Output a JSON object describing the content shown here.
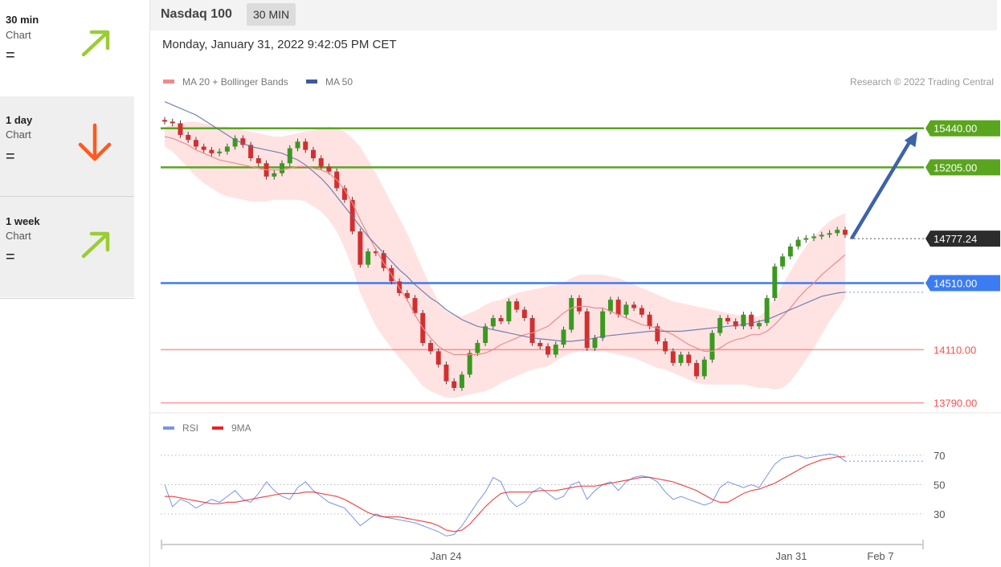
{
  "sidebar": {
    "items": [
      {
        "period": "30 min",
        "kind": "Chart",
        "signal": "=",
        "arrow": "up",
        "arrow_color": "#9acd32"
      },
      {
        "period": "1 day",
        "kind": "Chart",
        "signal": "=",
        "arrow": "down",
        "arrow_color": "#ff5a1f"
      },
      {
        "period": "1 week",
        "kind": "Chart",
        "signal": "=",
        "arrow": "up",
        "arrow_color": "#9acd32"
      }
    ]
  },
  "header": {
    "title": "Nasdaq 100",
    "timeframe": "30 MIN",
    "datetime": "Monday, January 31, 2022 9:42:05 PM CET"
  },
  "chart_data": {
    "type": "line",
    "legend": [
      "MA 20 + Bollinger Bands",
      "MA 50"
    ],
    "legend_colors": [
      "#f08a8a",
      "#3d5a99"
    ],
    "credit": "Research © 2022 Trading Central",
    "ylim": [
      13740,
      15680
    ],
    "resistances": [
      {
        "value": 15440,
        "label": "15440.00",
        "color": "#5aa51e"
      },
      {
        "value": 15205,
        "label": "15205.00",
        "color": "#5aa51e"
      }
    ],
    "pivot": {
      "value": 14510,
      "label": "14510.00",
      "color": "#3b7cf2"
    },
    "supports": [
      {
        "value": 14110,
        "label": "14110.00",
        "color": "#ff4d4d"
      },
      {
        "value": 13790,
        "label": "13790.00",
        "color": "#ff4d4d"
      }
    ],
    "last_price": {
      "value": 14777.24,
      "label": "14777.24"
    },
    "target_arrow": {
      "from": 14777,
      "to": 15440
    },
    "x_ticks": [
      "Jan 24",
      "Jan 31",
      "Feb 7"
    ],
    "close": [
      15480,
      15470,
      15400,
      15370,
      15330,
      15310,
      15290,
      15300,
      15330,
      15380,
      15340,
      15260,
      15230,
      15150,
      15170,
      15230,
      15320,
      15360,
      15310,
      15260,
      15210,
      15180,
      15080,
      15010,
      14820,
      14620,
      14700,
      14690,
      14600,
      14520,
      14450,
      14420,
      14330,
      14150,
      14100,
      14020,
      13920,
      13880,
      13960,
      14090,
      14150,
      14250,
      14300,
      14280,
      14400,
      14350,
      14300,
      14150,
      14130,
      14080,
      14140,
      14230,
      14420,
      14340,
      14120,
      14180,
      14340,
      14410,
      14320,
      14380,
      14360,
      14320,
      14250,
      14160,
      14100,
      14030,
      14080,
      14030,
      13950,
      14050,
      14210,
      14300,
      14280,
      14250,
      14320,
      14250,
      14270,
      14420,
      14610,
      14670,
      14730,
      14770,
      14780,
      14790,
      14800,
      14810,
      14830,
      14800
    ],
    "ma20": [
      15390,
      15380,
      15360,
      15340,
      15310,
      15290,
      15270,
      15250,
      15240,
      15230,
      15220,
      15210,
      15200,
      15190,
      15190,
      15190,
      15200,
      15210,
      15210,
      15200,
      15190,
      15170,
      15130,
      15070,
      14990,
      14890,
      14800,
      14710,
      14630,
      14560,
      14480,
      14410,
      14320,
      14240,
      14180,
      14130,
      14100,
      14080,
      14080,
      14080,
      14080,
      14090,
      14110,
      14140,
      14160,
      14180,
      14200,
      14210,
      14230,
      14250,
      14290,
      14330,
      14360,
      14370,
      14370,
      14360,
      14360,
      14340,
      14320,
      14300,
      14280,
      14260,
      14250,
      14240,
      14220,
      14200,
      14170,
      14140,
      14120,
      14100,
      14100,
      14120,
      14150,
      14170,
      14180,
      14200,
      14200,
      14220,
      14260,
      14310,
      14360,
      14420,
      14470,
      14510,
      14560,
      14600,
      14640,
      14680
    ],
    "ma50": [
      15600,
      15580,
      15560,
      15540,
      15520,
      15490,
      15460,
      15430,
      15400,
      15370,
      15350,
      15330,
      15320,
      15310,
      15300,
      15290,
      15270,
      15250,
      15220,
      15180,
      15140,
      15090,
      15030,
      14970,
      14910,
      14850,
      14790,
      14740,
      14690,
      14640,
      14590,
      14550,
      14500,
      14460,
      14420,
      14390,
      14350,
      14320,
      14290,
      14270,
      14250,
      14240,
      14230,
      14220,
      14210,
      14200,
      14190,
      14180,
      14175,
      14170,
      14165,
      14160,
      14160,
      14165,
      14170,
      14180,
      14190,
      14195,
      14200,
      14205,
      14210,
      14215,
      14220,
      14220,
      14220,
      14220,
      14220,
      14225,
      14230,
      14235,
      14240,
      14245,
      14250,
      14255,
      14260,
      14270,
      14280,
      14290,
      14310,
      14330,
      14350,
      14370,
      14390,
      14410,
      14430,
      14440,
      14450,
      14455
    ],
    "bb_upper": [
      15450,
      15460,
      15470,
      15480,
      15480,
      15470,
      15460,
      15450,
      15450,
      15440,
      15430,
      15420,
      15410,
      15400,
      15390,
      15390,
      15400,
      15410,
      15420,
      15430,
      15440,
      15450,
      15440,
      15420,
      15380,
      15330,
      15250,
      15170,
      15080,
      14990,
      14900,
      14810,
      14700,
      14590,
      14490,
      14400,
      14340,
      14320,
      14310,
      14330,
      14350,
      14380,
      14400,
      14410,
      14430,
      14450,
      14460,
      14470,
      14480,
      14490,
      14500,
      14510,
      14540,
      14560,
      14560,
      14560,
      14560,
      14550,
      14540,
      14520,
      14500,
      14480,
      14460,
      14440,
      14420,
      14400,
      14390,
      14380,
      14370,
      14360,
      14350,
      14340,
      14330,
      14320,
      14310,
      14310,
      14310,
      14350,
      14420,
      14500,
      14580,
      14660,
      14730,
      14790,
      14840,
      14880,
      14910,
      14930
    ],
    "bb_lower": [
      15330,
      15300,
      15250,
      15200,
      15150,
      15110,
      15080,
      15050,
      15030,
      15020,
      15010,
      15000,
      15000,
      15000,
      15010,
      15010,
      15010,
      15010,
      15000,
      14970,
      14940,
      14890,
      14820,
      14720,
      14600,
      14450,
      14350,
      14250,
      14180,
      14120,
      14060,
      14010,
      13950,
      13890,
      13860,
      13840,
      13820,
      13820,
      13830,
      13840,
      13850,
      13860,
      13880,
      13910,
      13930,
      13950,
      13970,
      13990,
      14000,
      14010,
      14040,
      14070,
      14090,
      14100,
      14100,
      14100,
      14100,
      14090,
      14080,
      14070,
      14060,
      14040,
      14020,
      14000,
      13990,
      13970,
      13950,
      13930,
      13910,
      13900,
      13900,
      13900,
      13900,
      13900,
      13900,
      13890,
      13880,
      13880,
      13870,
      13880,
      13920,
      13980,
      14050,
      14120,
      14200,
      14280,
      14350,
      14420
    ],
    "rsi": {
      "legend": [
        "RSI",
        "9MA"
      ],
      "colors": [
        "#7795e4",
        "#ee2222"
      ],
      "levels": [
        70,
        50,
        30
      ],
      "values": [
        50,
        35,
        40,
        38,
        34,
        37,
        40,
        38,
        42,
        46,
        40,
        38,
        44,
        52,
        46,
        42,
        40,
        48,
        52,
        46,
        42,
        38,
        36,
        34,
        28,
        22,
        26,
        30,
        28,
        27,
        26,
        25,
        24,
        22,
        20,
        18,
        15,
        16,
        22,
        30,
        38,
        45,
        55,
        52,
        40,
        35,
        38,
        45,
        48,
        44,
        40,
        42,
        50,
        52,
        40,
        46,
        50,
        52,
        46,
        52,
        55,
        56,
        55,
        52,
        45,
        40,
        42,
        40,
        38,
        36,
        38,
        48,
        52,
        50,
        48,
        50,
        48,
        56,
        64,
        68,
        69,
        70,
        68,
        69,
        70,
        71,
        70,
        66
      ],
      "ma9": [
        42,
        42,
        41,
        40,
        39,
        38,
        37,
        37,
        38,
        38,
        39,
        40,
        41,
        42,
        43,
        44,
        44,
        44,
        45,
        45,
        44,
        43,
        42,
        40,
        37,
        34,
        31,
        29,
        28,
        28,
        28,
        27,
        26,
        25,
        24,
        22,
        19,
        18,
        19,
        23,
        29,
        35,
        40,
        44,
        45,
        45,
        45,
        45,
        46,
        46,
        46,
        47,
        48,
        49,
        49,
        49,
        50,
        51,
        52,
        53,
        54,
        55,
        55,
        54,
        53,
        52,
        50,
        48,
        46,
        43,
        40,
        38,
        38,
        41,
        44,
        46,
        47,
        49,
        51,
        54,
        57,
        60,
        63,
        65,
        67,
        68,
        69,
        69
      ]
    }
  }
}
